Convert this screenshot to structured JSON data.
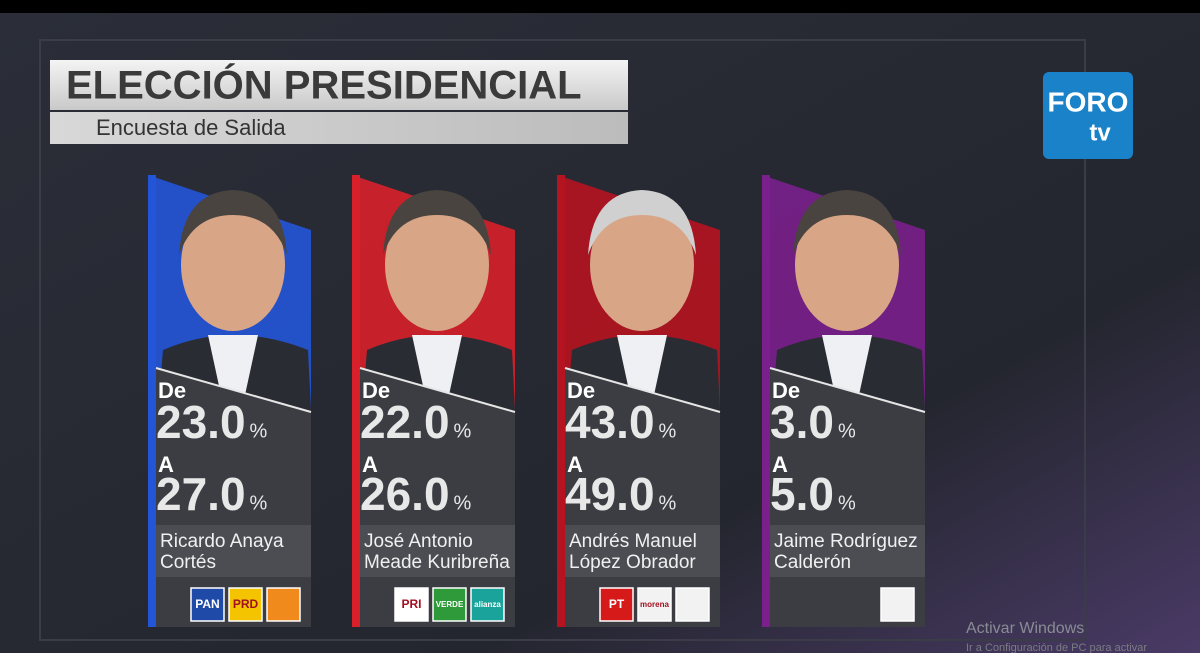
{
  "header": {
    "title": "ELECCIÓN PRESIDENCIAL",
    "subtitle": "Encuesta de Salida"
  },
  "logo": {
    "line1": "FORO",
    "line2": "tv"
  },
  "labels": {
    "from": "De",
    "to": "A",
    "unit": "%"
  },
  "candidates": [
    {
      "name_lines": [
        "Ricardo Anaya",
        "Cortés"
      ],
      "from": "23.0",
      "to": "27.0",
      "color": "#2355d8",
      "parties": [
        {
          "label": "PAN",
          "color": "#1f4aa8"
        },
        {
          "label": "PRD",
          "color": "#f5c400"
        },
        {
          "color": "#f08a1c"
        }
      ]
    },
    {
      "name_lines": [
        "José Antonio",
        "Meade Kuribreña"
      ],
      "from": "22.0",
      "to": "26.0",
      "color": "#d8202a",
      "parties": [
        {
          "label": "PRI",
          "color": "#ffffff"
        },
        {
          "label": "VERDE",
          "color": "#2e9a3a"
        },
        {
          "label": "alianza",
          "color": "#1aa39a"
        }
      ]
    },
    {
      "name_lines": [
        "Andrés Manuel",
        "López Obrador"
      ],
      "from": "43.0",
      "to": "49.0",
      "color": "#b5131f",
      "parties": [
        {
          "label": "PT",
          "color": "#d61a1a"
        },
        {
          "label": "morena",
          "color": "#f2f2f2"
        },
        {
          "color": "#f2f2f2"
        }
      ]
    },
    {
      "name_lines": [
        "Jaime Rodríguez",
        "Calderón"
      ],
      "from": "3.0",
      "to": "5.0",
      "color": "#7a1f8c",
      "parties": [
        {
          "color": "#f2f2f2"
        }
      ]
    }
  ],
  "watermark": {
    "line1": "Activar Windows",
    "line2": "Ir a Configuración de PC para activar"
  }
}
